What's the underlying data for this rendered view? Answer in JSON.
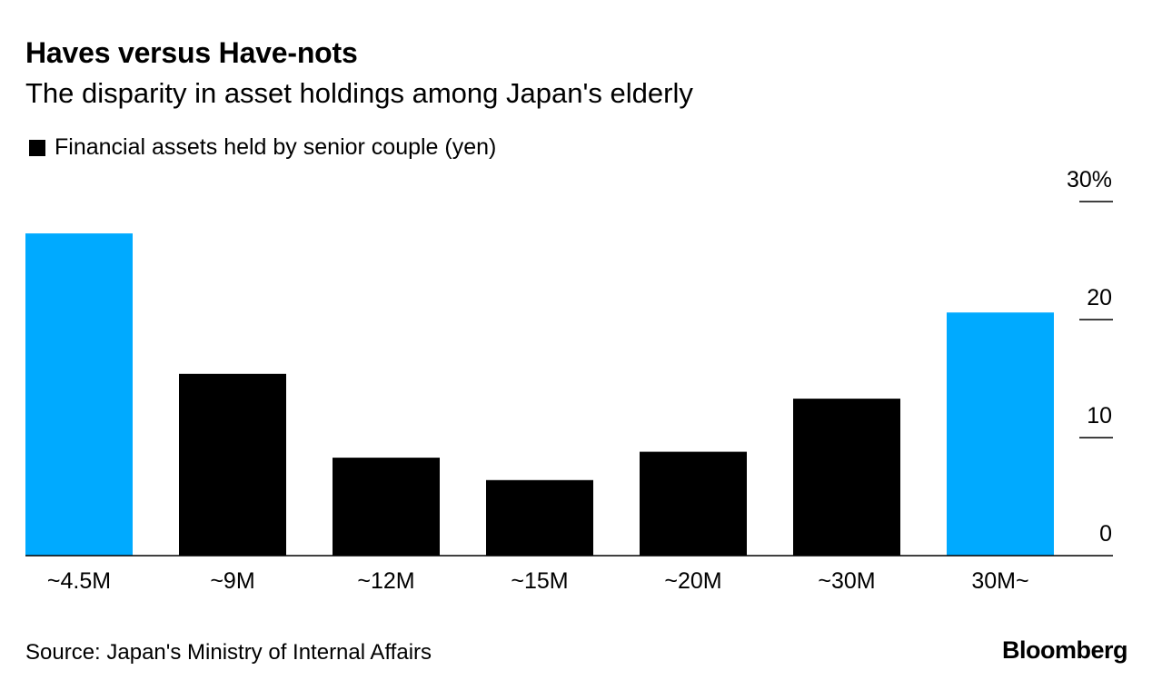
{
  "chart_data": {
    "type": "bar",
    "title": "Haves versus Have-nots",
    "subtitle": "The disparity in asset holdings among Japan's elderly",
    "legend": "Financial assets held by senior couple (yen)",
    "categories": [
      "~4.5M",
      "~9M",
      "~12M",
      "~15M",
      "~20M",
      "~30M",
      "30M~"
    ],
    "values": [
      27.3,
      15.4,
      8.3,
      6.4,
      8.8,
      13.3,
      20.6
    ],
    "highlight": [
      true,
      false,
      false,
      false,
      false,
      false,
      true
    ],
    "ylim": [
      0,
      30
    ],
    "yticks": [
      0,
      10,
      20,
      30
    ],
    "ytick_labels": [
      "0",
      "10",
      "20",
      "30%"
    ],
    "xlabel": "",
    "ylabel": "",
    "axis_side": "right"
  },
  "colors": {
    "highlight": "#00aaff",
    "bar": "#000000",
    "axis": "#000000"
  },
  "source": "Source: Japan's Ministry of Internal Affairs",
  "brand": "Bloomberg"
}
